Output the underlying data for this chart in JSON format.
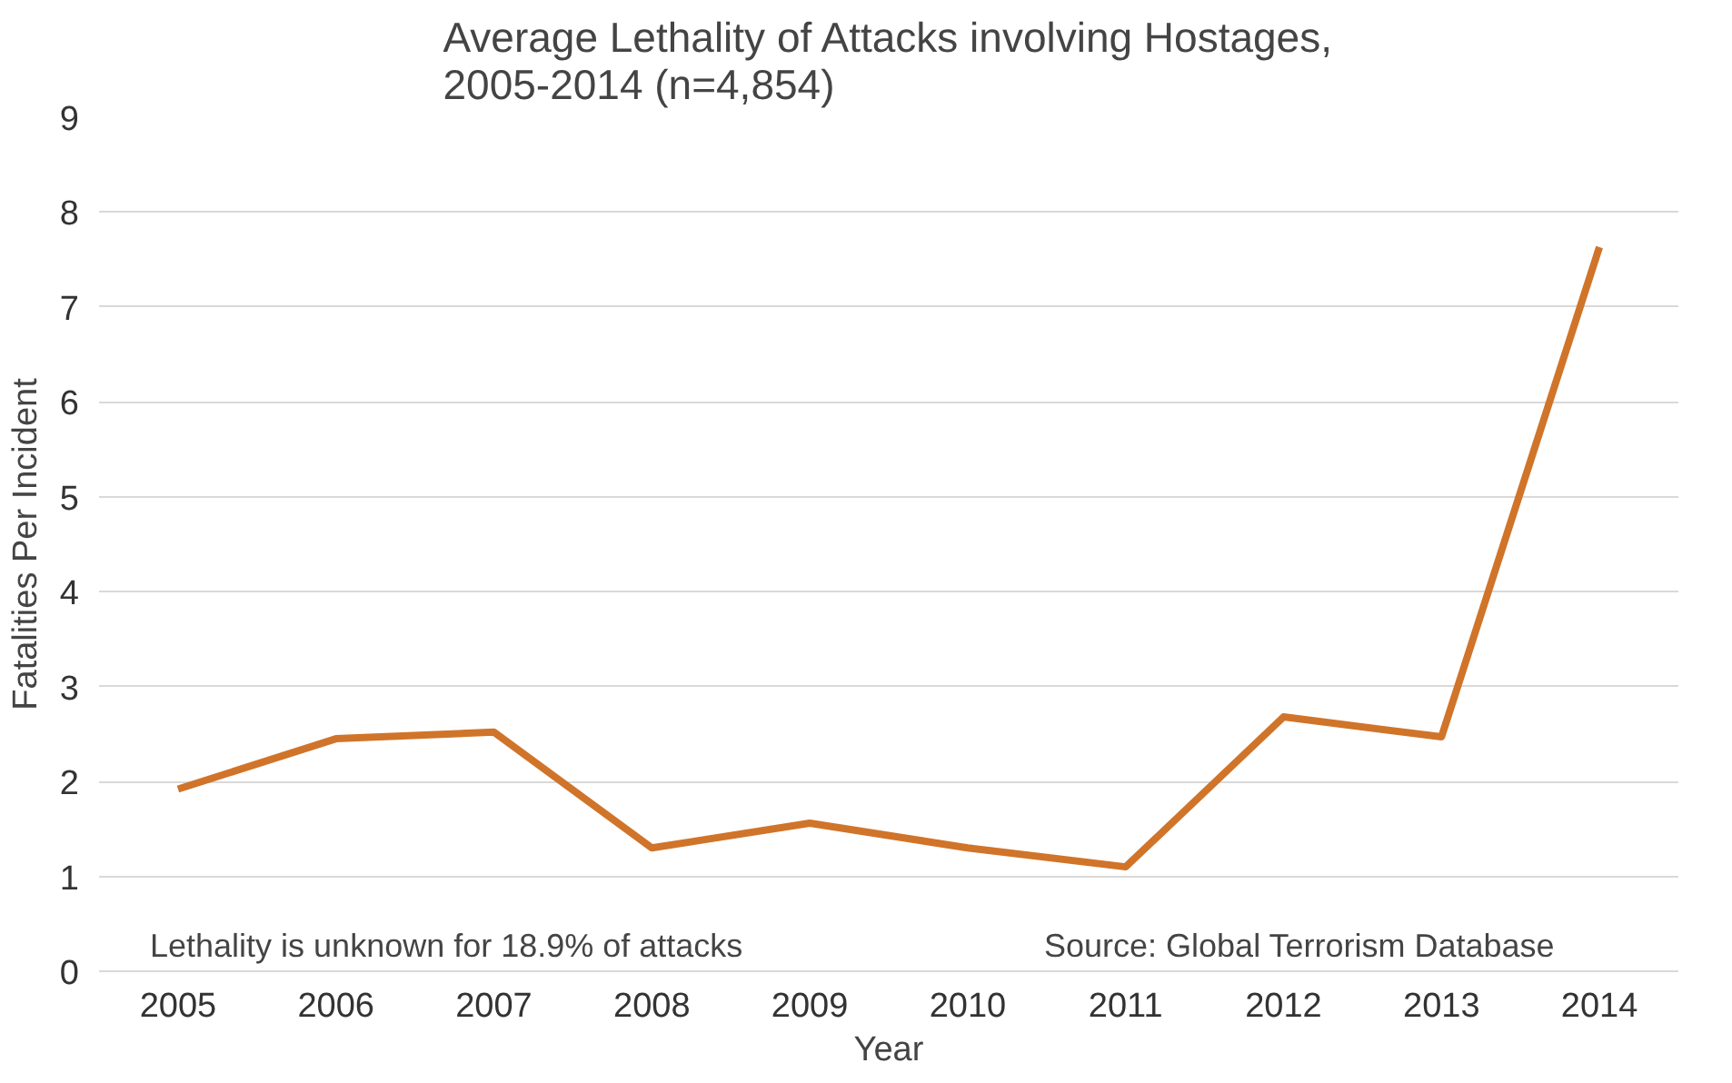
{
  "chart_data": {
    "type": "line",
    "title": "Average Lethality of Attacks involving Hostages,\n2005-2014 (n=4,854)",
    "xlabel": "Year",
    "ylabel": "Fatalities Per Incident",
    "categories": [
      "2005",
      "2006",
      "2007",
      "2008",
      "2009",
      "2010",
      "2011",
      "2012",
      "2013",
      "2014"
    ],
    "series": [
      {
        "color": "#d0742a",
        "values": [
          1.92,
          2.45,
          2.52,
          1.3,
          1.56,
          1.3,
          1.1,
          2.68,
          2.47,
          7.63
        ]
      }
    ],
    "ylim": [
      0,
      9
    ],
    "yticks": [
      0,
      1,
      2,
      3,
      4,
      5,
      6,
      7,
      8,
      9
    ],
    "grid": "y",
    "marker": "none",
    "line_style": "solid",
    "annotations": [
      "Lethality is unknown for 18.9% of attacks",
      "Source: Global Terrorism Database"
    ]
  }
}
